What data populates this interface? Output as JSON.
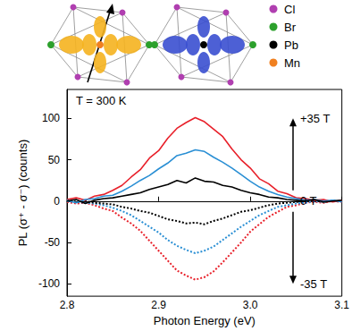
{
  "chart_data": {
    "type": "line",
    "xlabel": "Photon Energy (eV)",
    "ylabel": "PL (σ⁺ - σ⁻) (counts)",
    "x": [
      2.8,
      2.81,
      2.82,
      2.83,
      2.84,
      2.85,
      2.86,
      2.87,
      2.88,
      2.89,
      2.9,
      2.91,
      2.92,
      2.93,
      2.94,
      2.95,
      2.96,
      2.97,
      2.98,
      2.99,
      3.0,
      3.01,
      3.02,
      3.03,
      3.04,
      3.05,
      3.06,
      3.07,
      3.08,
      3.09,
      3.1
    ],
    "series": [
      {
        "color": "#e8202a",
        "line_style": "solid",
        "values": [
          2,
          4,
          1,
          6,
          8,
          13,
          19,
          29,
          38,
          52,
          61,
          76,
          88,
          95,
          101,
          96,
          87,
          78,
          63,
          50,
          40,
          27,
          21,
          12,
          9,
          4,
          3,
          1,
          2,
          -1,
          1
        ]
      },
      {
        "color": "#2a8fd4",
        "line_style": "solid",
        "values": [
          1,
          -2,
          2,
          3,
          6,
          7,
          12,
          18,
          25,
          31,
          39,
          46,
          55,
          58,
          62,
          60,
          53,
          47,
          40,
          32,
          24,
          17,
          12,
          8,
          5,
          3,
          1,
          2,
          0,
          1,
          -1
        ]
      },
      {
        "color": "#000000",
        "line_style": "solid",
        "values": [
          0,
          2,
          -3,
          1,
          3,
          4,
          6,
          8,
          10,
          14,
          17,
          20,
          25,
          22,
          28,
          24,
          23,
          19,
          17,
          13,
          10,
          8,
          5,
          4,
          2,
          1,
          0,
          2,
          -1,
          0,
          1
        ]
      },
      {
        "color": "#e8202a",
        "line_style": "dotted",
        "values": [
          -1,
          -3,
          -2,
          -5,
          -9,
          -12,
          -20,
          -27,
          -36,
          -48,
          -60,
          -72,
          -84,
          -90,
          -95,
          -92,
          -85,
          -74,
          -62,
          -50,
          -37,
          -28,
          -19,
          -13,
          -7,
          -5,
          -2,
          -1,
          -2,
          0,
          -1
        ]
      },
      {
        "color": "#2a8fd4",
        "line_style": "dotted",
        "values": [
          0,
          -1,
          -2,
          -3,
          -5,
          -8,
          -12,
          -17,
          -24,
          -31,
          -38,
          -47,
          -54,
          -59,
          -63,
          -60,
          -55,
          -47,
          -39,
          -31,
          -24,
          -17,
          -12,
          -7,
          -5,
          -3,
          -2,
          0,
          -1,
          1,
          0
        ]
      },
      {
        "color": "#000000",
        "line_style": "dotted",
        "values": [
          1,
          -1,
          0,
          -2,
          -3,
          -4,
          -7,
          -9,
          -12,
          -14,
          -18,
          -22,
          -24,
          -27,
          -26,
          -28,
          -24,
          -21,
          -17,
          -13,
          -11,
          -8,
          -5,
          -3,
          -2,
          -1,
          0,
          1,
          -1,
          0,
          0
        ]
      }
    ],
    "xlim": [
      2.8,
      3.1
    ],
    "xticks": [
      2.8,
      2.9,
      {
        "value": 3.0,
        "label": "3.0"
      },
      3.1
    ],
    "ylim": [
      -115,
      135
    ],
    "yticks": [
      -100,
      -50,
      0,
      50,
      100
    ],
    "grid": false,
    "annotations": {
      "temperature": "T = 300 K",
      "field_up": "+35 T",
      "field_zero": "0 T",
      "field_down": "-35 T"
    },
    "inset_legend": [
      {
        "label": "Cl",
        "color": "#b03fb0"
      },
      {
        "label": "Br",
        "color": "#2ca02c"
      },
      {
        "label": "Pb",
        "color": "#000000"
      },
      {
        "label": "Mn",
        "color": "#f08020"
      }
    ]
  }
}
